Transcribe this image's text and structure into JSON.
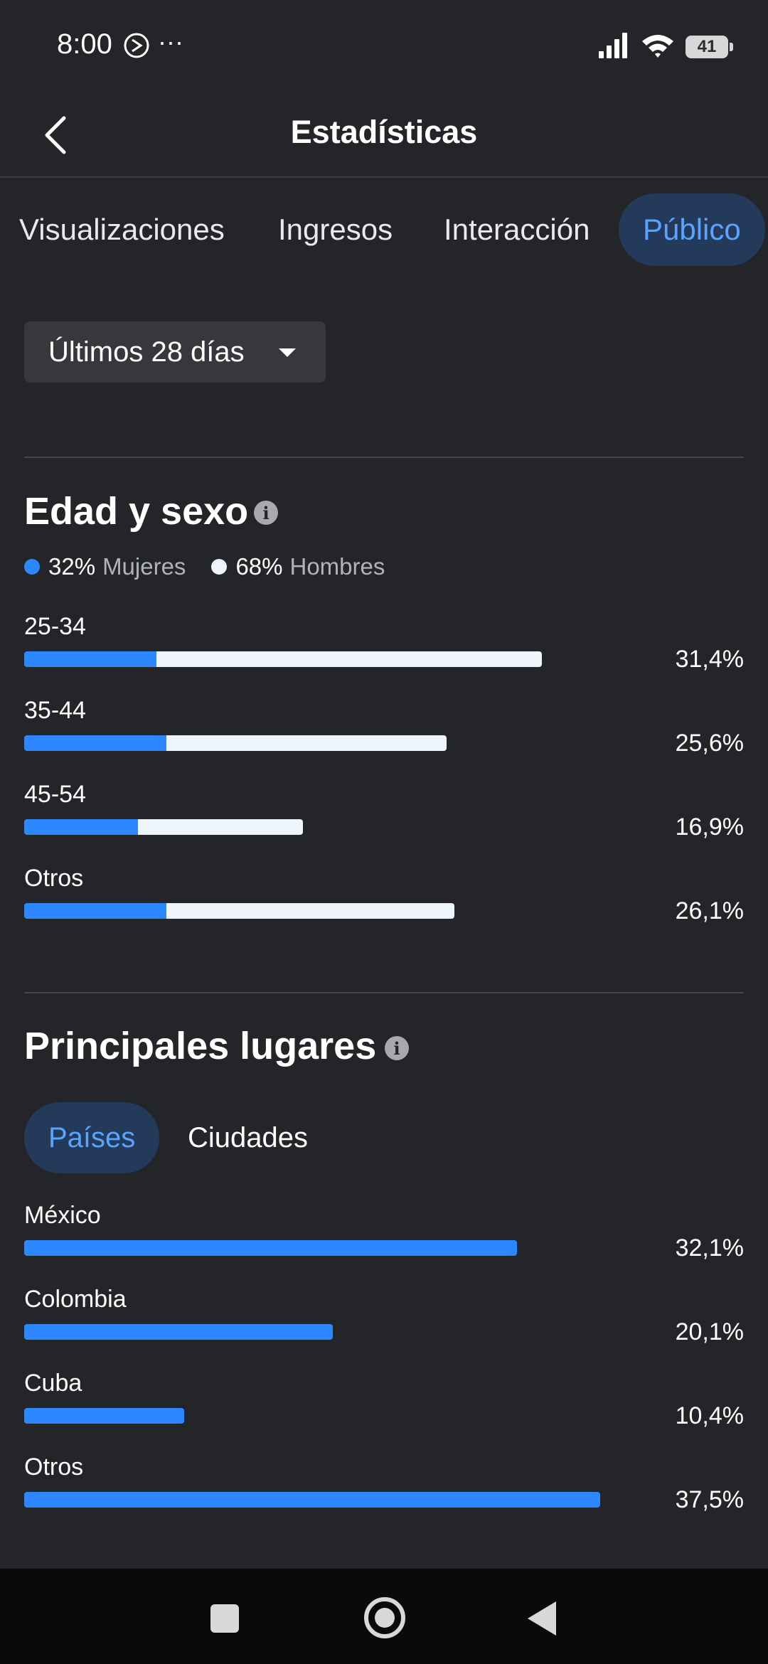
{
  "status_bar": {
    "time": "8:00",
    "dots": "···",
    "battery": "41"
  },
  "header": {
    "title": "Estadísticas"
  },
  "tabs": [
    {
      "label": "Visualizaciones"
    },
    {
      "label": "Ingresos"
    },
    {
      "label": "Interacción"
    },
    {
      "label": "Público"
    }
  ],
  "filter": {
    "label": "Últimos 28 días"
  },
  "age_gender": {
    "title": "Edad y sexo",
    "info": "i",
    "legend": [
      {
        "pct": "32%",
        "label": "Mujeres",
        "color": "#2d88ff"
      },
      {
        "pct": "68%",
        "label": "Hombres",
        "color": "#eef4fc"
      }
    ],
    "rows": [
      {
        "label": "25-34",
        "value_text": "31,4%",
        "value": 31.4,
        "women_pct": 0.255
      },
      {
        "label": "35-44",
        "value_text": "25,6%",
        "value": 25.6,
        "women_pct": 0.336
      },
      {
        "label": "45-54",
        "value_text": "16,9%",
        "value": 16.9,
        "women_pct": 0.409
      },
      {
        "label": "Otros",
        "value_text": "26,1%",
        "value": 26.1,
        "women_pct": 0.33
      }
    ],
    "max": 31.4
  },
  "places": {
    "title": "Principales lugares",
    "info": "i",
    "subtabs": [
      {
        "label": "Países"
      },
      {
        "label": "Ciudades"
      }
    ],
    "rows": [
      {
        "label": "México",
        "value_text": "32,1%",
        "value": 32.1
      },
      {
        "label": "Colombia",
        "value_text": "20,1%",
        "value": 20.1
      },
      {
        "label": "Cuba",
        "value_text": "10,4%",
        "value": 10.4
      },
      {
        "label": "Otros",
        "value_text": "37,5%",
        "value": 37.5
      }
    ],
    "max": 37.5
  },
  "colors": {
    "accent": "#2d88ff",
    "background": "#242528"
  }
}
